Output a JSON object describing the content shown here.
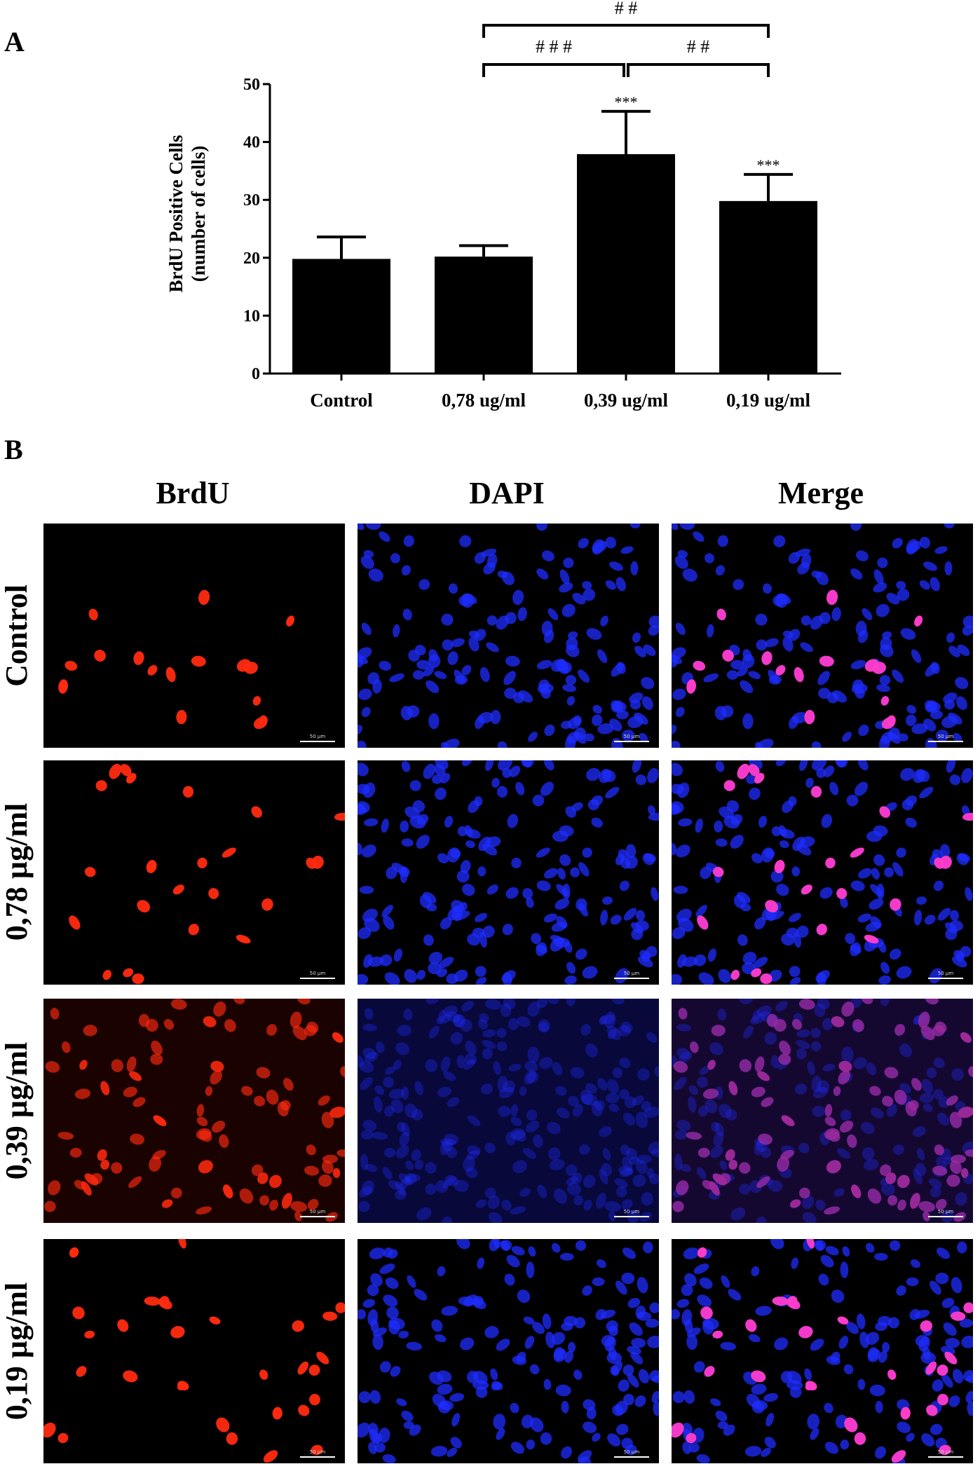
{
  "panel_a_label": "A",
  "panel_b_label": "B",
  "chart_data": {
    "type": "bar",
    "categories": [
      "Control",
      "0,78 ug/ml",
      "0,39 ug/ml",
      "0,19 ug/ml"
    ],
    "values": [
      19.8,
      20.2,
      37.9,
      29.8
    ],
    "errors": [
      3.8,
      1.9,
      7.4,
      4.6
    ],
    "significance": [
      "",
      "",
      "***",
      "***"
    ],
    "comparisons": [
      {
        "from": 1,
        "to": 2,
        "label": "# # #"
      },
      {
        "from": 2,
        "to": 3,
        "label": "# #"
      },
      {
        "from": 1,
        "to": 3,
        "label": "# #"
      }
    ],
    "ylabel_line1": "BrdU Positive Cells",
    "ylabel_line2": "(number of cells)",
    "xlabel": "",
    "ylim": [
      0,
      50
    ],
    "yticks": [
      0,
      10,
      20,
      30,
      40,
      50
    ],
    "bar_color": "#000000"
  },
  "figure": {
    "columns": [
      "BrdU",
      "DAPI",
      "Merge"
    ],
    "rows": [
      "Control",
      "0,78 µg/ml",
      "0,39 µg/ml",
      "0,19 µg/ml"
    ],
    "scale_bar_text": "50 µm",
    "colors": {
      "brdu_stain": "#ff2a10",
      "dapi_stain": "#1f2cff",
      "merge_stain": "#ff3cc8",
      "background": "#000000"
    }
  }
}
